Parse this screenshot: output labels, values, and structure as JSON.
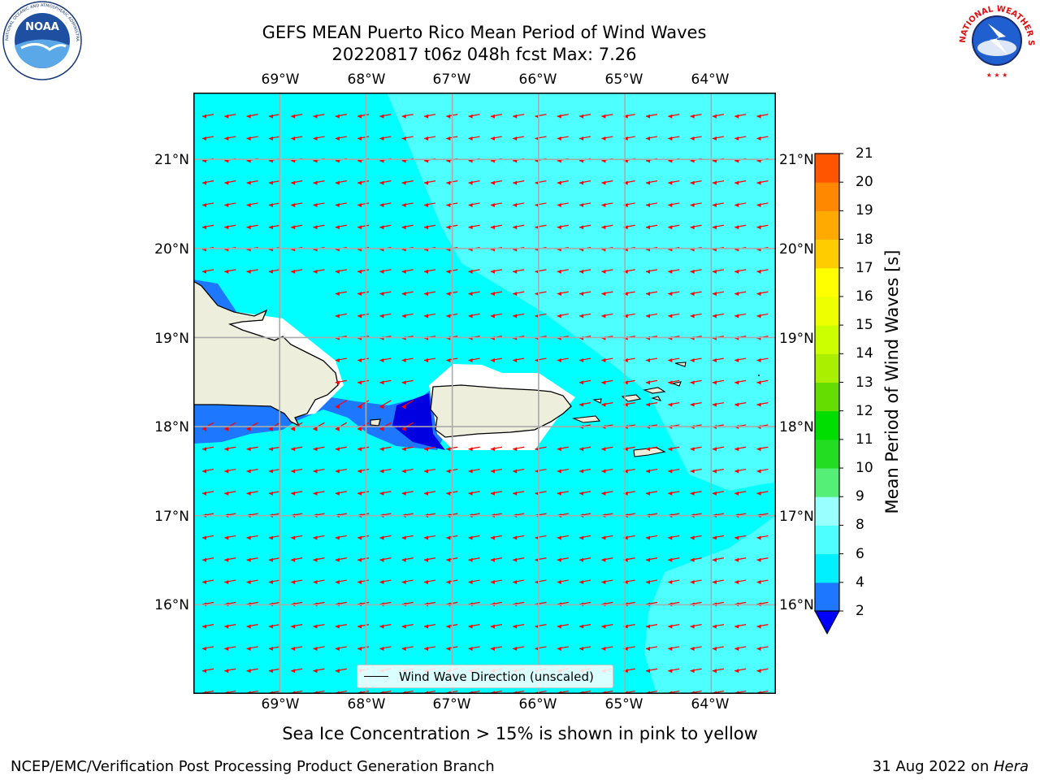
{
  "title": {
    "line1": "GEFS MEAN Puerto Rico Mean Period of Wind Waves",
    "line2": "20220817 t06z 048h fcst   Max: 7.26"
  },
  "map": {
    "lon_range": [
      -70,
      -63.25
    ],
    "lat_range": [
      15,
      21.75
    ],
    "lon_ticks": [
      "69°W",
      "68°W",
      "67°W",
      "66°W",
      "65°W",
      "64°W"
    ],
    "lat_ticks": [
      "21°N",
      "20°N",
      "19°N",
      "18°N",
      "17°N",
      "16°N"
    ],
    "grid": true,
    "ocean_colors": {
      "cyan_4_6": "#00ffff",
      "light_cyan_6_8": "#4dffff",
      "blue_2_4": "#1e78ff",
      "dark_blue_lt2": "#0000e0",
      "land": "#eeeedd",
      "masked": "#ffffff",
      "arrow": "#ff0000"
    }
  },
  "colorbar": {
    "label": "Mean Period of Wind Waves [s]",
    "levels": [
      "2",
      "4",
      "6",
      "8",
      "9",
      "10",
      "11",
      "12",
      "13",
      "14",
      "15",
      "16",
      "17",
      "18",
      "19",
      "20",
      "21"
    ],
    "colors": [
      "#1e78ff",
      "#00f0ff",
      "#4dffff",
      "#99ffff",
      "#55ee77",
      "#22dd22",
      "#00dd00",
      "#66dd00",
      "#aaee00",
      "#ccff00",
      "#eeff00",
      "#ffff00",
      "#ffcc00",
      "#ffaa00",
      "#ff8800",
      "#ff5500",
      "#ff2200",
      "#ff0000"
    ],
    "under_color": "#0000ff"
  },
  "legend": {
    "label": "Wind Wave Direction (unscaled)"
  },
  "note": "Sea Ice Concentration > 15% is shown in pink to yellow",
  "footer": {
    "left": "NCEP/EMC/Verification Post Processing Product Generation Branch",
    "right_date": "31 Aug 2022 on ",
    "right_host": "Hera"
  },
  "logos": {
    "left": "NOAA",
    "right": "NATIONAL WEATHER SERVICE"
  }
}
